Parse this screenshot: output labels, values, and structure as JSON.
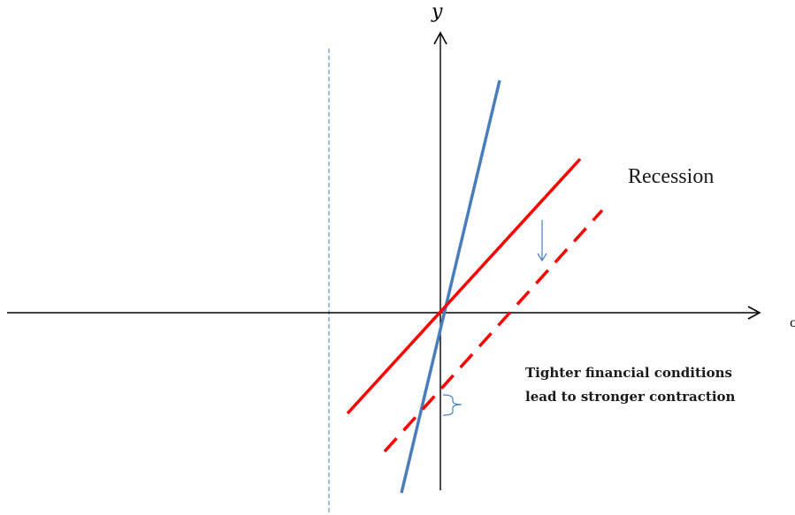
{
  "axes": {
    "y_label": "y",
    "x_label": "c"
  },
  "labels": {
    "regime": "Recession",
    "note_line1": "Tighter financial conditions",
    "note_line2": "lead to stronger contraction"
  },
  "colors": {
    "axes": "#000000",
    "steep_line": "#4a7ebb",
    "solid_red": "#ff0000",
    "dashed_red": "#ff0000",
    "guide_dashed": "#4a7ebb",
    "arrow": "#4a7ebb"
  },
  "lines": {
    "steep_line": "blue steep line through origin",
    "solid_red": "red solid line through origin",
    "dashed_red": "red dashed line shifted down"
  }
}
